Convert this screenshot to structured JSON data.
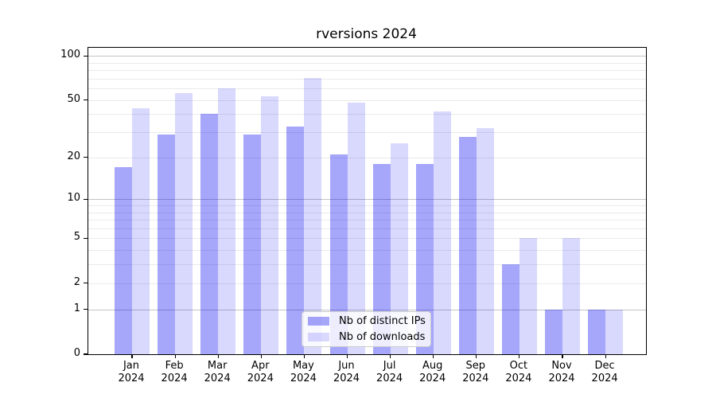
{
  "title": "rversions 2024",
  "legend": {
    "items": [
      {
        "label": "Nb of distinct IPs",
        "color": "rgba(0,0,240,0.35)"
      },
      {
        "label": "Nb of downloads",
        "color": "rgba(0,0,240,0.15)"
      }
    ]
  },
  "colors": {
    "bar_dark": "rgba(0,0,240,0.35)",
    "bar_light": "rgba(0,0,240,0.15)",
    "grid_major": "#c4c4c4",
    "grid_minor": "#eaeaea"
  },
  "chart_data": {
    "type": "bar",
    "title": "rversions 2024",
    "categories": [
      "Jan 2024",
      "Feb 2024",
      "Mar 2024",
      "Apr 2024",
      "May 2024",
      "Jun 2024",
      "Jul 2024",
      "Aug 2024",
      "Sep 2024",
      "Oct 2024",
      "Nov 2024",
      "Dec 2024"
    ],
    "x_ticks": [
      {
        "month": "Jan",
        "year": "2024"
      },
      {
        "month": "Feb",
        "year": "2024"
      },
      {
        "month": "Mar",
        "year": "2024"
      },
      {
        "month": "Apr",
        "year": "2024"
      },
      {
        "month": "May",
        "year": "2024"
      },
      {
        "month": "Jun",
        "year": "2024"
      },
      {
        "month": "Jul",
        "year": "2024"
      },
      {
        "month": "Aug",
        "year": "2024"
      },
      {
        "month": "Sep",
        "year": "2024"
      },
      {
        "month": "Oct",
        "year": "2024"
      },
      {
        "month": "Nov",
        "year": "2024"
      },
      {
        "month": "Dec",
        "year": "2024"
      }
    ],
    "series": [
      {
        "name": "Nb of distinct IPs",
        "color": "rgba(0,0,240,0.35)",
        "values": [
          17,
          29,
          40,
          29,
          33,
          21,
          18,
          18,
          28,
          3,
          1,
          1
        ]
      },
      {
        "name": "Nb of downloads",
        "color": "rgba(0,0,240,0.15)",
        "values": [
          44,
          56,
          60,
          53,
          71,
          48,
          25,
          42,
          32,
          5,
          5,
          1
        ]
      }
    ],
    "y_scale": "log10(1+y)",
    "ylim": [
      0,
      114
    ],
    "y_tick_values": [
      100,
      50,
      20,
      10,
      5,
      2,
      1,
      0
    ],
    "y_tick_labels": [
      "100",
      "50",
      "20",
      "10",
      "5",
      "2",
      "1",
      "0"
    ],
    "y_major_gridlines": [
      1,
      10,
      100
    ],
    "y_minor_gridlines": [
      2,
      3,
      4,
      5,
      6,
      7,
      8,
      9,
      20,
      30,
      40,
      50,
      60,
      70,
      80,
      90
    ],
    "grid": true,
    "legend_position": "lower center"
  }
}
